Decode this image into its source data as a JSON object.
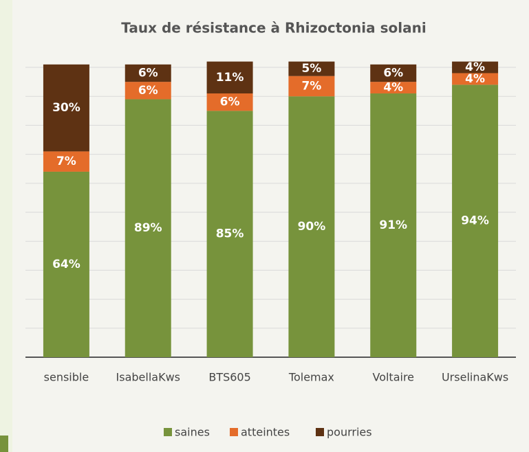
{
  "chart_data": {
    "type": "stacked_bar",
    "title": "Taux de résistance à Rhizoctonia solani",
    "categories": [
      "sensible",
      "IsabellaKws",
      "BTS605",
      "Tolemax",
      "Voltaire",
      "UrselinaKws"
    ],
    "series": [
      {
        "name": "saines",
        "color": "#77933c",
        "values": [
          64,
          89,
          85,
          90,
          91,
          94
        ]
      },
      {
        "name": "atteintes",
        "color": "#e46c2a",
        "values": [
          7,
          6,
          6,
          7,
          4,
          4
        ]
      },
      {
        "name": "pourries",
        "color": "#5e3213",
        "values": [
          30,
          6,
          11,
          5,
          6,
          4
        ]
      }
    ],
    "ylim": [
      0,
      102
    ],
    "yticks": [
      0,
      10,
      20,
      30,
      40,
      50,
      60,
      70,
      80,
      90,
      100
    ],
    "grid": true,
    "value_labels": [
      [
        "64%",
        "89%",
        "85%",
        "90%",
        "91%",
        "94%"
      ],
      [
        "7%",
        "6%",
        "6%",
        "7%",
        "4%",
        "4%"
      ],
      [
        "30%",
        "6%",
        "11%",
        "5%",
        "6%",
        "4%"
      ]
    ],
    "legend": "bottom"
  }
}
